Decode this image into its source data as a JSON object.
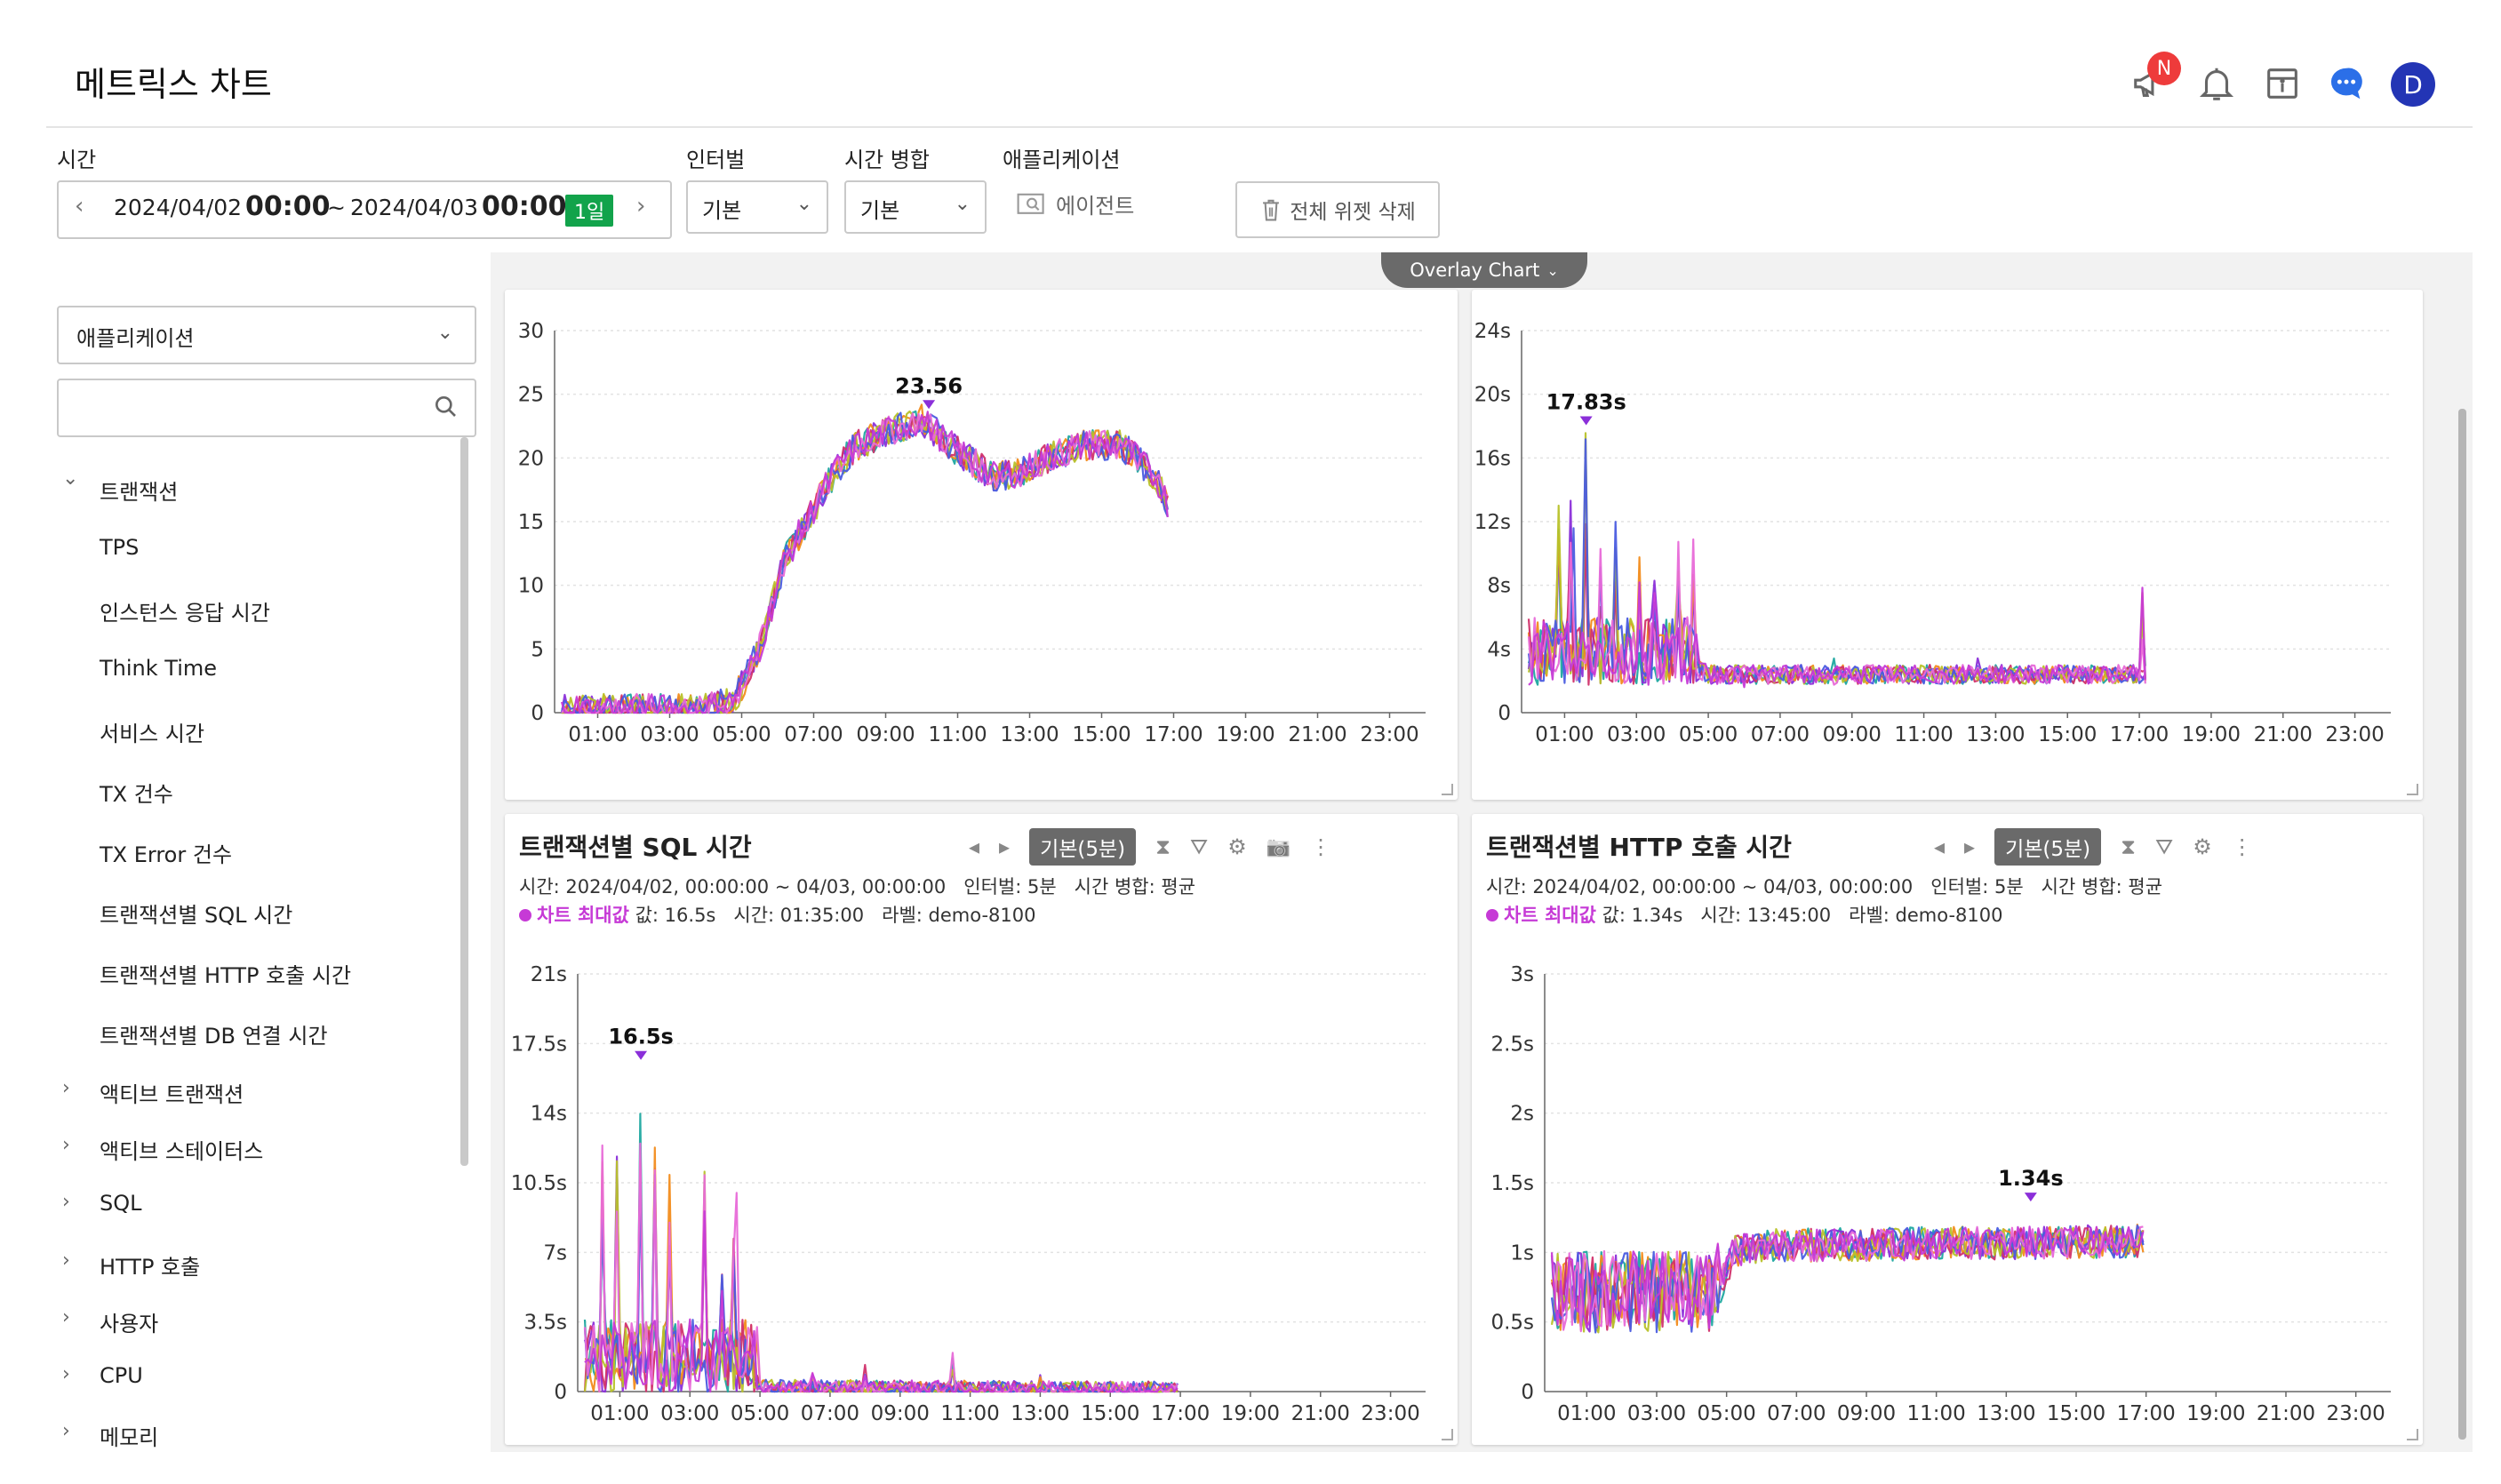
{
  "header": {
    "title": "메트릭스 차트",
    "notice_badge": "N",
    "avatar_letter": "D",
    "icons": [
      "megaphone-icon",
      "bell-icon",
      "panel-icon",
      "chat-icon",
      "avatar"
    ]
  },
  "filters": {
    "time_label": "시간",
    "time_start_date": "2024/04/02",
    "time_start_time": "00:00",
    "time_sep": "~",
    "time_end_date": "2024/04/03",
    "time_end_time": "00:00",
    "time_period": "1일",
    "interval_label": "인터벌",
    "interval_value": "기본",
    "merge_label": "시간 병합",
    "merge_value": "기본",
    "app_label": "애플리케이션",
    "agent_button": "에이전트",
    "delete_all": "전체 위젯 삭제"
  },
  "sidebar": {
    "app_select": "애플리케이션",
    "search_placeholder": "",
    "tree": [
      {
        "label": "트랜잭션",
        "level": 0,
        "expanded": true
      },
      {
        "label": "TPS",
        "level": 1
      },
      {
        "label": "인스턴스 응답 시간",
        "level": 1
      },
      {
        "label": "Think Time",
        "level": 1
      },
      {
        "label": "서비스 시간",
        "level": 1
      },
      {
        "label": "TX 건수",
        "level": 1
      },
      {
        "label": "TX Error 건수",
        "level": 1
      },
      {
        "label": "트랜잭션별 SQL 시간",
        "level": 1
      },
      {
        "label": "트랜잭션별 HTTP 호출 시간",
        "level": 1
      },
      {
        "label": "트랜잭션별 DB 연결 시간",
        "level": 1
      },
      {
        "label": "액티브 트랜잭션",
        "level": 0,
        "expanded": false
      },
      {
        "label": "액티브 스테이터스",
        "level": 0,
        "expanded": false
      },
      {
        "label": "SQL",
        "level": 0,
        "expanded": false
      },
      {
        "label": "HTTP 호출",
        "level": 0,
        "expanded": false
      },
      {
        "label": "사용자",
        "level": 0,
        "expanded": false
      },
      {
        "label": "CPU",
        "level": 0,
        "expanded": false
      },
      {
        "label": "메모리",
        "level": 0,
        "expanded": false
      }
    ]
  },
  "overlay_tab": "Overlay Chart",
  "colors": {
    "series": [
      "#1fa8a0",
      "#8b2fd9",
      "#f28c1c",
      "#d1326b",
      "#b8c22a",
      "#4a5ce0",
      "#e86ad8",
      "#c63ad6"
    ],
    "max_marker": "#8b2fd9",
    "accent_green": "#12a34b"
  },
  "panels": [
    {
      "id": "tps",
      "title": "",
      "show_header": false,
      "chart_data": {
        "type": "line",
        "x_ticks": [
          "01:00",
          "03:00",
          "05:00",
          "07:00",
          "09:00",
          "11:00",
          "13:00",
          "15:00",
          "17:00",
          "19:00",
          "21:00",
          "23:00"
        ],
        "y_ticks": [
          "0",
          "5",
          "10",
          "15",
          "20",
          "25",
          "30"
        ],
        "ylim": [
          0,
          30
        ],
        "max_label": "23.56",
        "max_point": {
          "hour": 10.2,
          "value": 23.56
        },
        "profile": [
          [
            0,
            0.3
          ],
          [
            2,
            0.3
          ],
          [
            4,
            0.3
          ],
          [
            4.8,
            1
          ],
          [
            5.5,
            5
          ],
          [
            6.2,
            12
          ],
          [
            7,
            16
          ],
          [
            7.6,
            19
          ],
          [
            8.2,
            21
          ],
          [
            9,
            22
          ],
          [
            10,
            23
          ],
          [
            10.8,
            21
          ],
          [
            11.5,
            19.5
          ],
          [
            12,
            18.5
          ],
          [
            12.8,
            19
          ],
          [
            13.5,
            20
          ],
          [
            14.5,
            21
          ],
          [
            15.5,
            21
          ],
          [
            16,
            20
          ],
          [
            16.6,
            18
          ],
          [
            16.9,
            16
          ]
        ],
        "end_hour": 16.9,
        "noise": 1.2
      }
    },
    {
      "id": "resp",
      "title": "",
      "show_header": false,
      "chart_data": {
        "type": "line",
        "x_ticks": [
          "01:00",
          "03:00",
          "05:00",
          "07:00",
          "09:00",
          "11:00",
          "13:00",
          "15:00",
          "17:00",
          "19:00",
          "21:00",
          "23:00"
        ],
        "y_ticks": [
          "0",
          "4s",
          "8s",
          "12s",
          "16s",
          "20s",
          "24s"
        ],
        "ylim": [
          0,
          24
        ],
        "max_label": "17.83s",
        "max_point": {
          "hour": 1.6,
          "value": 17.83
        },
        "profile": [
          [
            0,
            3
          ],
          [
            4.5,
            3
          ],
          [
            5,
            2.4
          ],
          [
            17,
            2.4
          ]
        ],
        "end_hour": 17.2,
        "noise": 0.6,
        "spikes": [
          [
            0.8,
            14
          ],
          [
            1.2,
            16
          ],
          [
            1.6,
            17.83
          ],
          [
            2,
            11
          ],
          [
            2.4,
            13
          ],
          [
            3.1,
            10
          ],
          [
            3.5,
            9
          ],
          [
            4.2,
            12
          ],
          [
            4.6,
            11
          ],
          [
            5.2,
            3.5
          ],
          [
            6,
            3
          ],
          [
            8.5,
            3.5
          ],
          [
            10,
            4
          ],
          [
            12.5,
            3.5
          ],
          [
            15,
            3.2
          ],
          [
            17.1,
            8
          ]
        ],
        "chaos_until": 4.7
      }
    },
    {
      "id": "sql",
      "title": "트랜잭션별 SQL 시간",
      "show_header": true,
      "badge": "기본(5분)",
      "meta": "시간: 2024/04/02, 00:00:00 ~ 04/03, 00:00:00   인터벌: 5분   시간 병합: 평균",
      "max_text_label": "차트 최대값",
      "max_text_rest": " 값: 16.5s   시간: 01:35:00   라벨: demo-8100",
      "chart_data": {
        "type": "line",
        "x_ticks": [
          "01:00",
          "03:00",
          "05:00",
          "07:00",
          "09:00",
          "11:00",
          "13:00",
          "15:00",
          "17:00",
          "19:00",
          "21:00",
          "23:00"
        ],
        "y_ticks": [
          "0",
          "3.5s",
          "7s",
          "10.5s",
          "14s",
          "17.5s",
          "21s"
        ],
        "ylim": [
          0,
          21
        ],
        "max_label": "16.5s",
        "max_point": {
          "hour": 1.6,
          "value": 16.5
        },
        "profile": [
          [
            0,
            1
          ],
          [
            4.7,
            1
          ],
          [
            5,
            0.2
          ],
          [
            17,
            0.1
          ]
        ],
        "end_hour": 17,
        "noise": 0.4,
        "spikes": [
          [
            0.5,
            13
          ],
          [
            0.9,
            15
          ],
          [
            1.6,
            16.5
          ],
          [
            2,
            13
          ],
          [
            2.4,
            11
          ],
          [
            3.4,
            12
          ],
          [
            3.9,
            7
          ],
          [
            4.3,
            10
          ],
          [
            4.9,
            5
          ],
          [
            6.5,
            1
          ],
          [
            8,
            1.5
          ],
          [
            10.5,
            2
          ],
          [
            13,
            1
          ],
          [
            15,
            0.6
          ]
        ],
        "chaos_until": 4.9
      }
    },
    {
      "id": "http",
      "title": "트랜잭션별 HTTP 호출 시간",
      "show_header": true,
      "badge": "기본(5분)",
      "meta": "시간: 2024/04/02, 00:00:00 ~ 04/03, 00:00:00   인터벌: 5분   시간 병합: 평균",
      "max_text_label": "차트 최대값",
      "max_text_rest": " 값: 1.34s   시간: 13:45:00   라벨: demo-8100",
      "chart_data": {
        "type": "line",
        "x_ticks": [
          "01:00",
          "03:00",
          "05:00",
          "07:00",
          "09:00",
          "11:00",
          "13:00",
          "15:00",
          "17:00",
          "19:00",
          "21:00",
          "23:00"
        ],
        "y_ticks": [
          "0",
          "0.5s",
          "1s",
          "1.5s",
          "2s",
          "2.5s",
          "3s"
        ],
        "ylim": [
          0,
          3
        ],
        "max_label": "1.34s",
        "max_point": {
          "hour": 13.7,
          "value": 1.34
        },
        "profile": [
          [
            0,
            0.6
          ],
          [
            4.6,
            0.6
          ],
          [
            5.2,
            1.0
          ],
          [
            6,
            1.05
          ],
          [
            17,
            1.08
          ]
        ],
        "end_hour": 17,
        "noise": 0.12,
        "chaos_until": 4.8,
        "chaos_amp": 0.45
      }
    }
  ]
}
